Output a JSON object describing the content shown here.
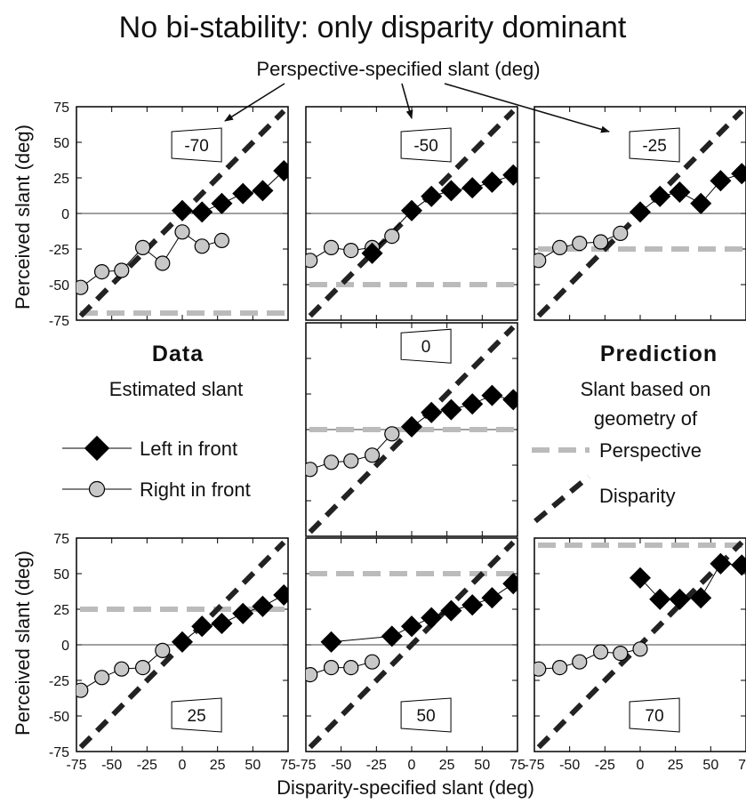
{
  "title": "No bi-stability: only disparity dominant",
  "top_annotation": "Perspective-specified slant (deg)",
  "xlabel": "Disparity-specified slant (deg)",
  "ylabel": "Perceived slant (deg)",
  "legend": {
    "data_heading": "Data",
    "data_sub": "Estimated slant",
    "left_label": "Left in front",
    "right_label": "Right in front",
    "prediction_heading": "Prediction",
    "prediction_sub1": "Slant based on",
    "prediction_sub2": "geometry of",
    "perspective_label": "Perspective",
    "disparity_label": "Disparity"
  },
  "colors": {
    "left_marker": "#000000",
    "right_marker": "#c8c8c8",
    "perspective_line": "#bbbbbb",
    "disparity_line": "#222222"
  },
  "chart_data": {
    "type": "scatter",
    "xlim": [
      -75,
      75
    ],
    "ylim": [
      -75,
      75
    ],
    "x_ticks": [
      "-75",
      "-50",
      "-25",
      "0",
      "25",
      "50",
      "75"
    ],
    "y_ticks": [
      "75",
      "50",
      "25",
      "0",
      "-25",
      "-50",
      "-75"
    ],
    "panels": [
      {
        "perspective_label": "-70",
        "perspective_slant": -70,
        "left_in_front": {
          "x": [
            0,
            14,
            28,
            43,
            57,
            72
          ],
          "y": [
            2,
            1,
            7,
            14,
            16,
            30
          ]
        },
        "right_in_front": {
          "x": [
            -72,
            -57,
            -43,
            -28,
            -14,
            0,
            14,
            28
          ],
          "y": [
            -52,
            -41,
            -40,
            -24,
            -35,
            -13,
            -23,
            -19
          ]
        }
      },
      {
        "perspective_label": "-50",
        "perspective_slant": -50,
        "left_in_front": {
          "x": [
            -28,
            0,
            14,
            28,
            43,
            57,
            72
          ],
          "y": [
            -28,
            2,
            12,
            16,
            18,
            22,
            27
          ]
        },
        "right_in_front": {
          "x": [
            -72,
            -57,
            -43,
            -28,
            -14
          ],
          "y": [
            -33,
            -24,
            -26,
            -24,
            -16
          ]
        }
      },
      {
        "perspective_label": "-25",
        "perspective_slant": -25,
        "left_in_front": {
          "x": [
            0,
            14,
            28,
            43,
            57,
            72
          ],
          "y": [
            1,
            12,
            15,
            7,
            23,
            28
          ]
        },
        "right_in_front": {
          "x": [
            -72,
            -57,
            -43,
            -28,
            -14
          ],
          "y": [
            -33,
            -24,
            -21,
            -20,
            -14
          ]
        }
      },
      {
        "perspective_label": "0",
        "perspective_slant": 0,
        "left_in_front": {
          "x": [
            0,
            14,
            28,
            43,
            57,
            72
          ],
          "y": [
            2,
            12,
            14,
            18,
            24,
            21
          ]
        },
        "right_in_front": {
          "x": [
            -72,
            -57,
            -43,
            -28,
            -14
          ],
          "y": [
            -28,
            -23,
            -22,
            -18,
            -3
          ]
        }
      },
      {
        "perspective_label": "25",
        "perspective_slant": 25,
        "left_in_front": {
          "x": [
            0,
            14,
            28,
            43,
            57,
            72
          ],
          "y": [
            2,
            13,
            15,
            22,
            27,
            35
          ]
        },
        "right_in_front": {
          "x": [
            -72,
            -57,
            -43,
            -28,
            -14
          ],
          "y": [
            -32,
            -23,
            -17,
            -16,
            -4
          ]
        }
      },
      {
        "perspective_label": "50",
        "perspective_slant": 50,
        "left_in_front": {
          "x": [
            -57,
            -14,
            0,
            14,
            28,
            43,
            57,
            72
          ],
          "y": [
            2,
            6,
            13,
            19,
            24,
            28,
            33,
            43
          ]
        },
        "right_in_front": {
          "x": [
            -72,
            -57,
            -43,
            -28
          ],
          "y": [
            -21,
            -16,
            -16,
            -12
          ]
        }
      },
      {
        "perspective_label": "70",
        "perspective_slant": 70,
        "left_in_front": {
          "x": [
            0,
            14,
            28,
            43,
            57,
            72
          ],
          "y": [
            47,
            32,
            32,
            33,
            57,
            56
          ]
        },
        "right_in_front": {
          "x": [
            -72,
            -57,
            -43,
            -28,
            -14,
            0
          ],
          "y": [
            -17,
            -16,
            -12,
            -5,
            -6,
            -3
          ]
        }
      }
    ]
  }
}
